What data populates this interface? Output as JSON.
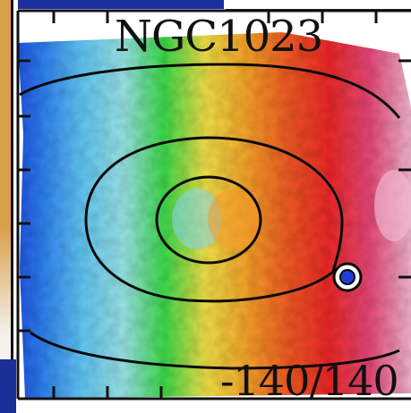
{
  "panel": {
    "title": "NGC1023",
    "velocity_range": "-140/140"
  },
  "colors": {
    "frame": "#111111",
    "contour": "#0a0a0a",
    "background": "#ffffff",
    "velocity_colormap": [
      "#1a36d6",
      "#2f7ff2",
      "#63c8f6",
      "#9be6e8",
      "#3ddc4b",
      "#f2e24a",
      "#f7a52b",
      "#f25c26",
      "#ee2a2a",
      "#e84a7a",
      "#f2b8d0"
    ]
  },
  "icons": {
    "compact_source": "circled-dot-icon"
  }
}
